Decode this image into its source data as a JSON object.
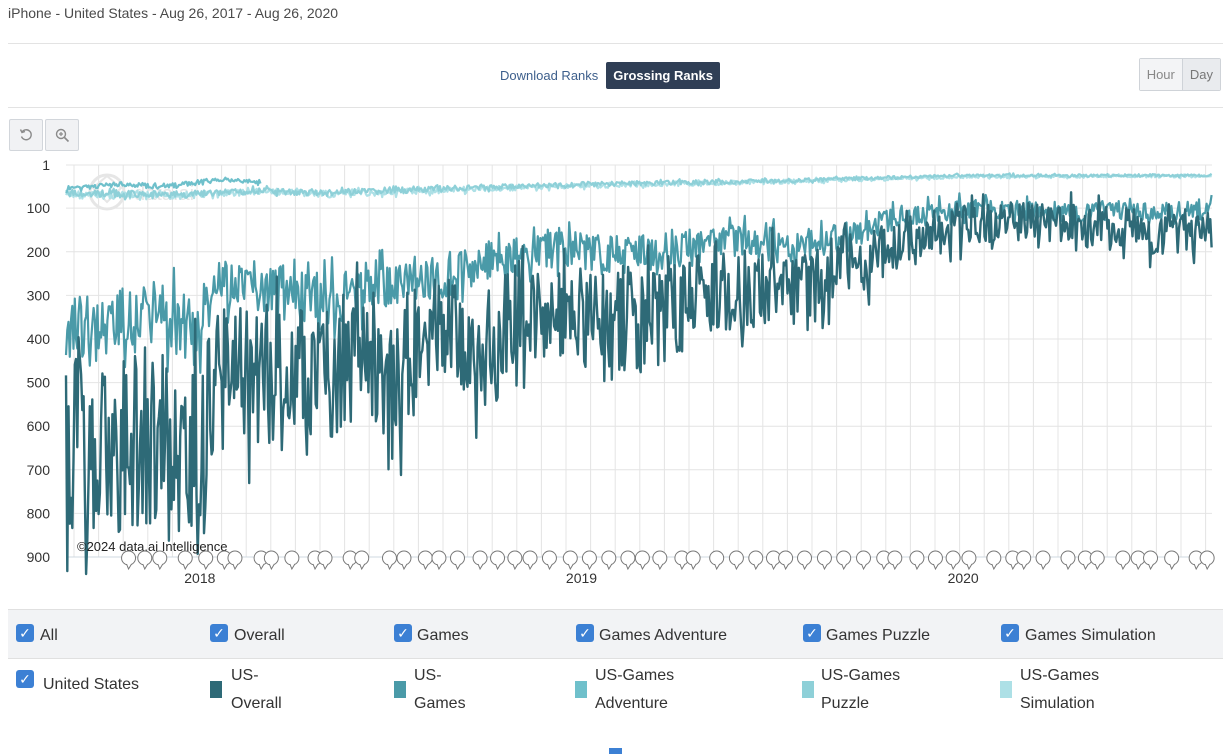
{
  "subtitle": "iPhone - United States - Aug 26, 2017 - Aug 26, 2020",
  "rank_tabs": {
    "download": "Download Ranks",
    "grossing": "Grossing Ranks",
    "active": "Grossing Ranks"
  },
  "granularity": {
    "hour": "Hour",
    "day": "Day",
    "active": "Day"
  },
  "toolbar": {
    "reset_icon": "reset-icon",
    "zoom_icon": "zoom-icon"
  },
  "watermark": "data.ai",
  "copyright": "©2024 data.ai Intelligence",
  "colors": {
    "overall": "#2e6a77",
    "games": "#4a9aa8",
    "adventure": "#6fc0cb",
    "puzzle": "#8ed0d8",
    "simulation": "#ade0e6",
    "accent": "#3c80d4"
  },
  "chart_data": {
    "type": "line",
    "title": "",
    "x_range": [
      "2017-08-26",
      "2020-08-26"
    ],
    "x_ticks": [
      {
        "label": "2018",
        "date": "2018-01-01"
      },
      {
        "label": "2019",
        "date": "2019-01-01"
      },
      {
        "label": "2020",
        "date": "2020-01-01"
      }
    ],
    "y_ticks": [
      "1",
      "100",
      "200",
      "300",
      "400",
      "500",
      "600",
      "700",
      "800",
      "900"
    ],
    "ylim": [
      1,
      900
    ],
    "y_inverted": true,
    "series": [
      {
        "name": "US-Overall",
        "color": "#2e6a77",
        "x": [
          "2017-08-26",
          "2017-10-01",
          "2017-11-15",
          "2017-12-31",
          "2018-01-15",
          "2018-02-15",
          "2018-04-15",
          "2018-06-15",
          "2018-07-01",
          "2018-07-15",
          "2018-09-01",
          "2018-10-01",
          "2018-11-01",
          "2018-12-01",
          "2019-02-01",
          "2019-04-01",
          "2019-06-01",
          "2019-08-01",
          "2019-09-15",
          "2019-11-01",
          "2019-12-15",
          "2020-02-01",
          "2020-04-01",
          "2020-06-01",
          "2020-08-26"
        ],
        "values": [
          640,
          650,
          640,
          680,
          510,
          480,
          500,
          430,
          560,
          450,
          360,
          450,
          330,
          340,
          380,
          330,
          280,
          290,
          230,
          180,
          150,
          130,
          135,
          150,
          160
        ]
      },
      {
        "name": "US-Games",
        "color": "#4a9aa8",
        "x": [
          "2017-08-26",
          "2017-10-01",
          "2017-11-15",
          "2017-12-31",
          "2018-01-15",
          "2018-03-15",
          "2018-05-01",
          "2018-07-15",
          "2018-09-01",
          "2018-11-01",
          "2018-12-01",
          "2019-02-01",
          "2019-04-01",
          "2019-06-01",
          "2019-08-01",
          "2019-09-15",
          "2019-11-01",
          "2020-01-01",
          "2020-03-01",
          "2020-05-01",
          "2020-08-26"
        ],
        "values": [
          390,
          380,
          340,
          390,
          270,
          290,
          310,
          260,
          250,
          210,
          190,
          210,
          190,
          175,
          190,
          160,
          120,
          100,
          105,
          110,
          105
        ]
      },
      {
        "name": "US-Games Adventure",
        "color": "#6fc0cb",
        "x": [
          "2017-08-26",
          "2017-10-15",
          "2017-12-01",
          "2018-01-15",
          "2018-03-01"
        ],
        "values": [
          60,
          45,
          50,
          35,
          40
        ]
      },
      {
        "name": "US-Games Puzzle",
        "color": "#8ed0d8",
        "x": [
          "2017-08-26",
          "2017-12-01",
          "2018-03-01",
          "2018-05-01",
          "2018-09-01",
          "2019-01-01",
          "2019-07-01",
          "2020-01-01",
          "2020-08-26"
        ],
        "values": [
          65,
          70,
          60,
          65,
          55,
          45,
          38,
          25,
          25
        ]
      },
      {
        "name": "US-Games Simulation",
        "color": "#ade0e6",
        "x": [
          "2017-08-26",
          "2017-12-01",
          "2018-03-01",
          "2018-05-01",
          "2018-09-01",
          "2019-01-01",
          "2019-07-01",
          "2020-01-01",
          "2020-08-26"
        ],
        "values": [
          70,
          72,
          62,
          68,
          58,
          48,
          40,
          28,
          26
        ]
      }
    ],
    "annotation_marker_count": 60
  },
  "filters": {
    "all": "All",
    "overall": "Overall",
    "games": "Games",
    "adventure": "Games Adventure",
    "puzzle": "Games Puzzle",
    "simulation": "Games Simulation"
  },
  "legend": {
    "country": "United States",
    "overall": {
      "line1": "US-",
      "line2": "Overall"
    },
    "games": {
      "line1": "US-",
      "line2": "Games"
    },
    "adventure": {
      "line1": "US-Games",
      "line2": "Adventure"
    },
    "puzzle": {
      "line1": "US-Games",
      "line2": "Puzzle"
    },
    "simulation": {
      "line1": "US-Games",
      "line2": "Simulation"
    }
  }
}
